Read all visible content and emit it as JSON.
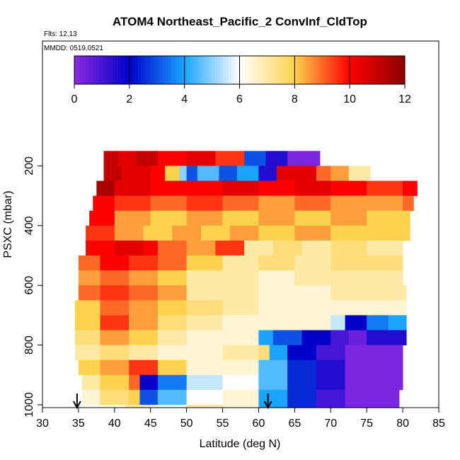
{
  "chart_data": {
    "type": "heatmap",
    "title": "ATOM4 Northeast_Pacific_2 ConvInf_CldTop",
    "notes": [
      "Flts: 12,13",
      "MMDD: 0519,0521"
    ],
    "xlabel": "Latitude (deg N)",
    "ylabel": "PSXC (mbar)",
    "xlim": [
      30,
      85
    ],
    "ylim": [
      1000,
      0
    ],
    "x_ticks": [
      "30",
      "35",
      "40",
      "45",
      "50",
      "55",
      "60",
      "65",
      "70",
      "75",
      "80",
      "85"
    ],
    "y_ticks": [
      "200",
      "400",
      "600",
      "800",
      "1000"
    ],
    "colorbar": {
      "range": [
        0,
        12
      ],
      "ticks": [
        "0",
        "2",
        "4",
        "6",
        "8",
        "10",
        "12"
      ],
      "colors": [
        "#8a2be2",
        "#0000c8",
        "#1aa3ff",
        "#ffffff",
        "#ffd24d",
        "#ff0000",
        "#8b0000"
      ]
    },
    "markers_x": [
      34.8,
      61.3
    ],
    "grid": false,
    "rows": [
      {
        "p": [
          150,
          200
        ],
        "segs": [
          [
            38.5,
            40.5,
            11
          ],
          [
            40.5,
            43,
            10.5
          ],
          [
            43,
            46,
            11
          ],
          [
            46,
            50,
            10
          ],
          [
            50,
            54,
            10.5
          ],
          [
            54,
            58,
            9.5
          ],
          [
            58,
            61,
            3
          ],
          [
            61,
            64,
            1.5
          ],
          [
            64,
            68.5,
            0.2
          ]
        ]
      },
      {
        "p": [
          200,
          250
        ],
        "segs": [
          [
            38.5,
            41,
            11
          ],
          [
            41,
            45,
            10.5
          ],
          [
            45,
            47,
            10
          ],
          [
            47,
            49,
            8
          ],
          [
            49,
            50,
            5
          ],
          [
            50,
            51.5,
            3
          ],
          [
            51.5,
            54.5,
            4.5
          ],
          [
            54.5,
            57,
            3
          ],
          [
            57,
            60,
            4
          ],
          [
            60,
            62.5,
            1.5
          ],
          [
            62.5,
            68,
            10.5
          ],
          [
            68,
            70,
            9
          ],
          [
            70,
            72.5,
            8.5
          ],
          [
            72.5,
            75.5,
            7
          ]
        ]
      },
      {
        "p": [
          250,
          300
        ],
        "segs": [
          [
            37.5,
            40,
            11.5
          ],
          [
            40,
            45,
            10.5
          ],
          [
            45,
            55,
            10
          ],
          [
            55,
            60,
            10.5
          ],
          [
            60,
            65,
            10
          ],
          [
            65,
            70,
            10.5
          ],
          [
            70,
            75,
            10
          ],
          [
            75,
            80,
            9.5
          ],
          [
            80,
            82,
            10
          ]
        ]
      },
      {
        "p": [
          300,
          350
        ],
        "segs": [
          [
            37,
            40,
            10
          ],
          [
            40,
            45,
            9.5
          ],
          [
            45,
            50,
            9
          ],
          [
            50,
            55,
            9.5
          ],
          [
            55,
            60,
            9
          ],
          [
            60,
            65,
            8.5
          ],
          [
            65,
            70,
            9
          ],
          [
            70,
            75,
            8.5
          ],
          [
            75,
            80,
            8.5
          ],
          [
            80,
            81.5,
            9
          ]
        ]
      },
      {
        "p": [
          350,
          400
        ],
        "segs": [
          [
            36.5,
            40,
            10
          ],
          [
            40,
            45,
            8.5
          ],
          [
            45,
            50,
            8
          ],
          [
            50,
            55,
            8.5
          ],
          [
            55,
            60,
            8
          ],
          [
            60,
            65,
            8.5
          ],
          [
            65,
            70,
            8
          ],
          [
            70,
            75,
            8.5
          ],
          [
            75,
            81,
            8
          ]
        ]
      },
      {
        "p": [
          400,
          450
        ],
        "segs": [
          [
            36,
            40,
            9.5
          ],
          [
            40,
            44,
            8.5
          ],
          [
            44,
            48,
            8
          ],
          [
            48,
            52,
            8.5
          ],
          [
            52,
            56,
            8
          ],
          [
            56,
            60,
            8.5
          ],
          [
            60,
            65,
            8
          ],
          [
            65,
            70,
            8.5
          ],
          [
            70,
            75,
            8
          ],
          [
            75,
            81,
            8
          ]
        ]
      },
      {
        "p": [
          450,
          500
        ],
        "segs": [
          [
            36,
            40,
            10
          ],
          [
            40,
            44,
            10.5
          ],
          [
            44,
            46,
            10
          ],
          [
            46,
            50,
            9
          ],
          [
            50,
            54,
            8.5
          ],
          [
            54,
            58,
            9.5
          ],
          [
            58,
            62,
            7
          ],
          [
            62,
            66,
            7.5
          ],
          [
            66,
            70,
            7
          ],
          [
            70,
            75,
            7.5
          ],
          [
            75,
            80,
            7
          ]
        ]
      },
      {
        "p": [
          500,
          550
        ],
        "segs": [
          [
            35,
            38,
            9
          ],
          [
            38,
            42,
            10
          ],
          [
            42,
            46,
            9.5
          ],
          [
            46,
            50,
            9
          ],
          [
            50,
            55,
            8
          ],
          [
            55,
            60,
            7
          ],
          [
            60,
            65,
            7.5
          ],
          [
            65,
            70,
            7
          ],
          [
            70,
            80,
            7.5
          ]
        ]
      },
      {
        "p": [
          550,
          600
        ],
        "segs": [
          [
            35,
            38,
            8.5
          ],
          [
            38,
            42,
            9
          ],
          [
            42,
            46,
            8.5
          ],
          [
            46,
            50,
            8
          ],
          [
            50,
            55,
            7
          ],
          [
            55,
            60,
            7
          ],
          [
            60,
            65,
            6.5
          ],
          [
            65,
            70,
            7
          ],
          [
            70,
            80,
            7
          ]
        ]
      },
      {
        "p": [
          600,
          650
        ],
        "segs": [
          [
            35,
            38,
            9
          ],
          [
            38,
            42,
            9.5
          ],
          [
            42,
            46,
            9
          ],
          [
            46,
            50,
            8.5
          ],
          [
            50,
            55,
            7
          ],
          [
            55,
            60,
            7
          ],
          [
            60,
            65,
            6.5
          ],
          [
            65,
            70,
            6.5
          ],
          [
            70,
            80.5,
            7
          ]
        ]
      },
      {
        "p": [
          650,
          700
        ],
        "segs": [
          [
            34.5,
            38,
            8
          ],
          [
            38,
            42,
            9
          ],
          [
            42,
            46,
            8.5
          ],
          [
            46,
            50,
            8
          ],
          [
            50,
            55,
            7.5
          ],
          [
            55,
            60,
            7
          ],
          [
            60,
            65,
            6.5
          ],
          [
            65,
            70,
            6.5
          ],
          [
            70,
            75,
            6.5
          ],
          [
            75,
            80.5,
            6.5
          ]
        ]
      },
      {
        "p": [
          700,
          750
        ],
        "segs": [
          [
            34.5,
            38,
            8
          ],
          [
            38,
            42,
            9.5
          ],
          [
            42,
            46,
            8.5
          ],
          [
            46,
            50,
            7.5
          ],
          [
            50,
            55,
            7
          ],
          [
            55,
            60,
            6.5
          ],
          [
            60,
            65,
            6.5
          ],
          [
            65,
            70,
            6.5
          ],
          [
            70,
            72,
            5.5
          ],
          [
            72,
            75,
            2
          ],
          [
            75,
            78,
            3.5
          ],
          [
            78,
            80.5,
            4
          ]
        ]
      },
      {
        "p": [
          750,
          800
        ],
        "segs": [
          [
            34.5,
            38,
            7.5
          ],
          [
            38,
            42,
            8.5
          ],
          [
            42,
            46,
            8
          ],
          [
            46,
            50,
            7
          ],
          [
            50,
            55,
            6.5
          ],
          [
            55,
            60,
            6.5
          ],
          [
            60,
            62,
            4
          ],
          [
            62,
            66,
            3
          ],
          [
            66,
            70,
            2
          ],
          [
            70,
            72.5,
            1
          ],
          [
            72.5,
            75,
            0.5
          ],
          [
            75,
            80.5,
            1.5
          ]
        ]
      },
      {
        "p": [
          800,
          850
        ],
        "segs": [
          [
            34.5,
            38,
            7
          ],
          [
            38,
            42,
            7.5
          ],
          [
            42,
            46,
            7
          ],
          [
            46,
            50,
            6.5
          ],
          [
            50,
            55,
            6.5
          ],
          [
            55,
            60,
            7
          ],
          [
            60,
            61.5,
            7.5
          ],
          [
            61.5,
            64,
            4
          ],
          [
            64,
            68,
            2
          ],
          [
            68,
            72,
            1
          ],
          [
            72,
            80,
            0.2
          ]
        ]
      },
      {
        "p": [
          850,
          900
        ],
        "segs": [
          [
            35,
            38,
            8
          ],
          [
            38,
            42,
            8.5
          ],
          [
            42,
            46,
            9.5
          ],
          [
            46,
            50,
            8
          ],
          [
            50,
            55,
            6.5
          ],
          [
            55,
            60,
            6.5
          ],
          [
            60,
            64,
            4.5
          ],
          [
            64,
            68,
            2.5
          ],
          [
            68,
            72,
            1.5
          ],
          [
            72,
            80,
            0.2
          ]
        ]
      },
      {
        "p": [
          900,
          950
        ],
        "segs": [
          [
            35.5,
            38,
            7
          ],
          [
            38,
            42,
            8
          ],
          [
            42,
            43.5,
            9
          ],
          [
            43.5,
            46,
            2
          ],
          [
            46,
            50,
            3.5
          ],
          [
            50,
            55,
            5.5
          ],
          [
            55,
            60,
            6
          ],
          [
            60,
            64,
            4.5
          ],
          [
            64,
            68,
            2.5
          ],
          [
            68,
            72,
            1.5
          ],
          [
            72,
            80,
            0.2
          ]
        ]
      },
      {
        "p": [
          950,
          1000
        ],
        "segs": [
          [
            35.5,
            38,
            6.5
          ],
          [
            38,
            42,
            7.5
          ],
          [
            42,
            43.5,
            8
          ],
          [
            43.5,
            46,
            3
          ],
          [
            46,
            50,
            4.5
          ],
          [
            50,
            55,
            6
          ],
          [
            55,
            60,
            6.5
          ],
          [
            60,
            64,
            4
          ],
          [
            64,
            68,
            2.5
          ],
          [
            68,
            72,
            1
          ],
          [
            72,
            79.5,
            0.2
          ]
        ]
      },
      {
        "p": [
          1000,
          1010
        ],
        "segs": [
          [
            41.5,
            45,
            7
          ],
          [
            45,
            50,
            6.5
          ],
          [
            50,
            55,
            7
          ],
          [
            55,
            60,
            6.5
          ],
          [
            60,
            64,
            4
          ],
          [
            64,
            68,
            2.5
          ],
          [
            68,
            72,
            1
          ],
          [
            72,
            79.5,
            0.2
          ]
        ]
      }
    ]
  }
}
